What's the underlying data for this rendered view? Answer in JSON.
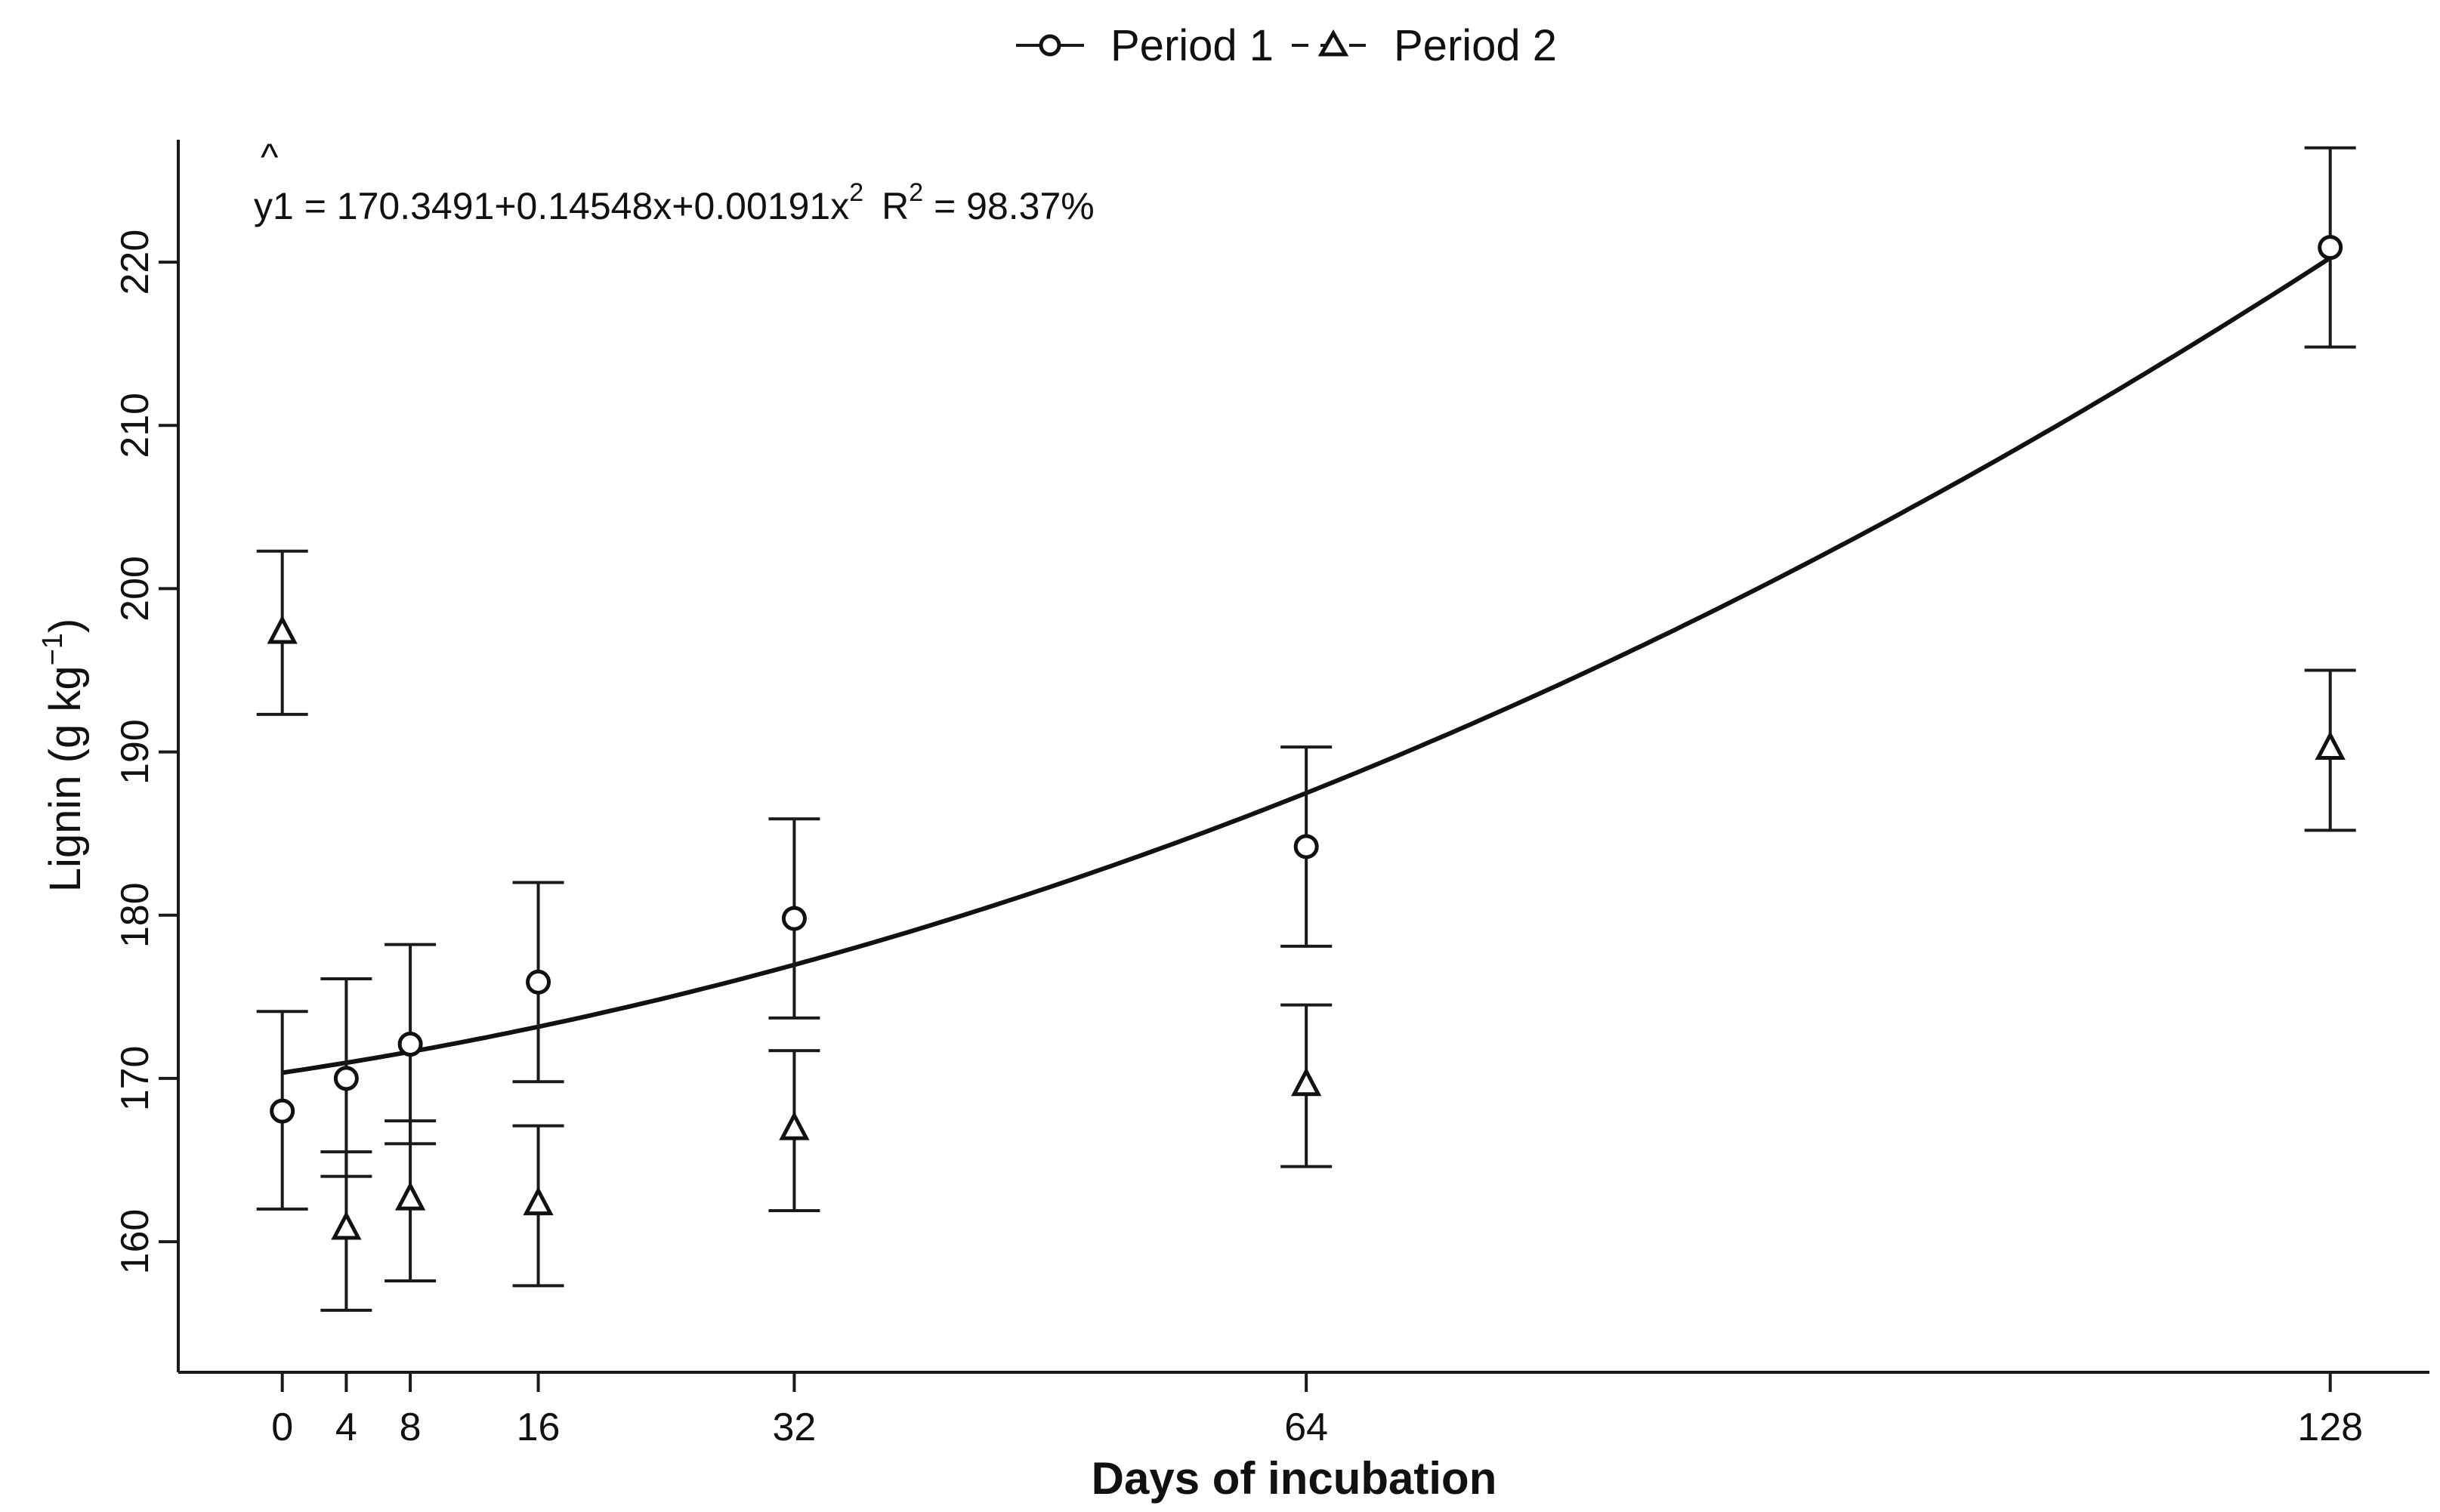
{
  "chart_data": {
    "type": "scatter",
    "title": "",
    "xlabel": "Days of incubation",
    "ylabel": "Lignin (g kg",
    "ylabel_unit_sup": "−1",
    "ylabel_close": ")",
    "xlim": [
      -6.5,
      134.2
    ],
    "ylim": [
      152,
      227.5
    ],
    "x_ticks": [
      0,
      4,
      8,
      16,
      32,
      64,
      128
    ],
    "x_tick_labels": [
      "0",
      "4",
      "8",
      "16",
      "32",
      "64",
      "128"
    ],
    "y_ticks": [
      160,
      170,
      180,
      190,
      200,
      210,
      220
    ],
    "y_tick_labels": [
      "160",
      "170",
      "180",
      "190",
      "200",
      "210",
      "220"
    ],
    "grid": false,
    "legend_position": "top-center",
    "series": [
      {
        "name": "Period 1",
        "line_style": "solid",
        "marker": "circle",
        "x": [
          0,
          4,
          8,
          16,
          32,
          64,
          128
        ],
        "values": [
          168.0,
          170.0,
          172.1,
          175.9,
          179.8,
          184.2,
          220.9
        ],
        "error_low": [
          162.0,
          164.0,
          166.0,
          169.8,
          173.7,
          178.1,
          214.8
        ],
        "error_high": [
          174.1,
          176.1,
          178.2,
          182.0,
          185.9,
          190.3,
          227.0
        ]
      },
      {
        "name": "Period 2",
        "line_style": "dashed",
        "marker": "triangle",
        "x": [
          0,
          4,
          8,
          16,
          32,
          64,
          128
        ],
        "values": [
          197.4,
          160.9,
          162.7,
          162.4,
          167.0,
          169.7,
          190.3
        ],
        "error_low": [
          192.3,
          155.8,
          157.6,
          157.3,
          161.9,
          164.6,
          185.2
        ],
        "error_high": [
          202.3,
          165.5,
          167.4,
          167.1,
          171.7,
          174.5,
          195.0
        ]
      }
    ],
    "fit": {
      "series": "Period 1",
      "coefficients": [
        170.3491,
        0.14548,
        0.00191
      ],
      "x_range": [
        0,
        128
      ],
      "equation_lhs_y": "y",
      "equation_lhs_hat": "^",
      "equation_lhs_sub": "1",
      "equation_rhs": " = 170.3491+0.14548x+0.00191x",
      "equation_sup": "2",
      "r2_prefix": "R",
      "r2_sup": "2",
      "r2_value": " = 98.37%"
    }
  }
}
